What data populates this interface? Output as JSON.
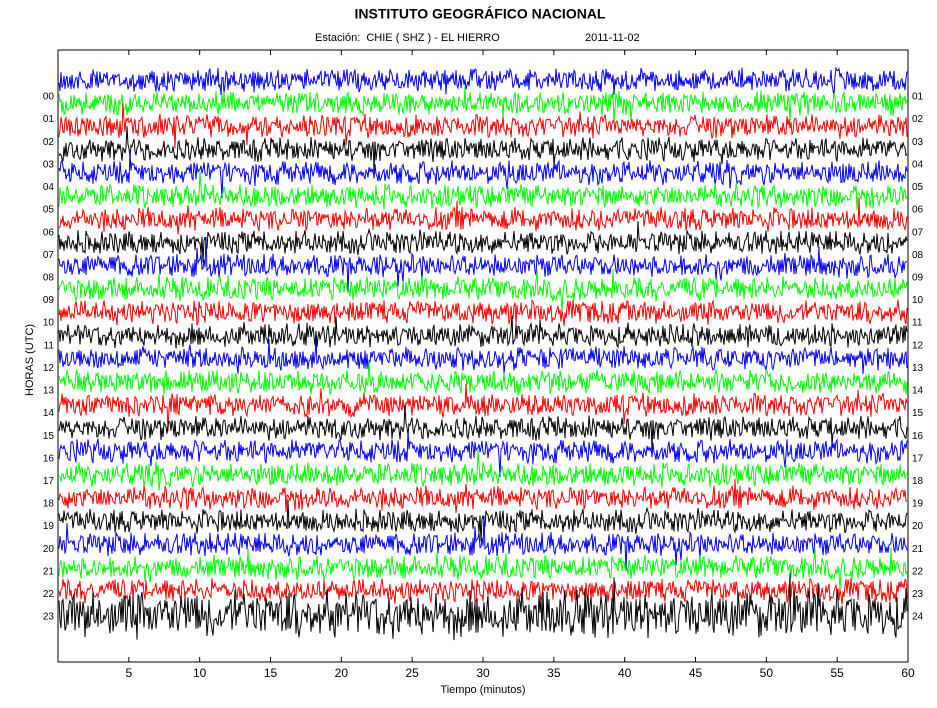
{
  "chart_data": {
    "type": "helicorder",
    "title": "INSTITUTO GEOGRÁFICO NACIONAL",
    "subtitle": "Estación:  CHIE ( SHZ ) - EL HIERRO",
    "date": "2011-11-02",
    "x_label": "Tiempo (minutos)",
    "y_label": "HORAS (UTC)",
    "xlim": [
      0,
      60
    ],
    "xticks": [
      5,
      10,
      15,
      20,
      25,
      30,
      35,
      40,
      45,
      50,
      55,
      60
    ],
    "rows_left": [
      "00",
      "01",
      "02",
      "03",
      "04",
      "05",
      "06",
      "07",
      "08",
      "09",
      "10",
      "11",
      "12",
      "13",
      "14",
      "15",
      "16",
      "17",
      "18",
      "19",
      "20",
      "21",
      "22",
      "23"
    ],
    "rows_right": [
      "01",
      "02",
      "03",
      "04",
      "05",
      "06",
      "07",
      "08",
      "09",
      "10",
      "11",
      "12",
      "13",
      "14",
      "15",
      "16",
      "17",
      "18",
      "19",
      "20",
      "21",
      "22",
      "23",
      "24"
    ],
    "colors": [
      "#0000ff",
      "#00ff00",
      "#ff0000",
      "#000000"
    ]
  }
}
